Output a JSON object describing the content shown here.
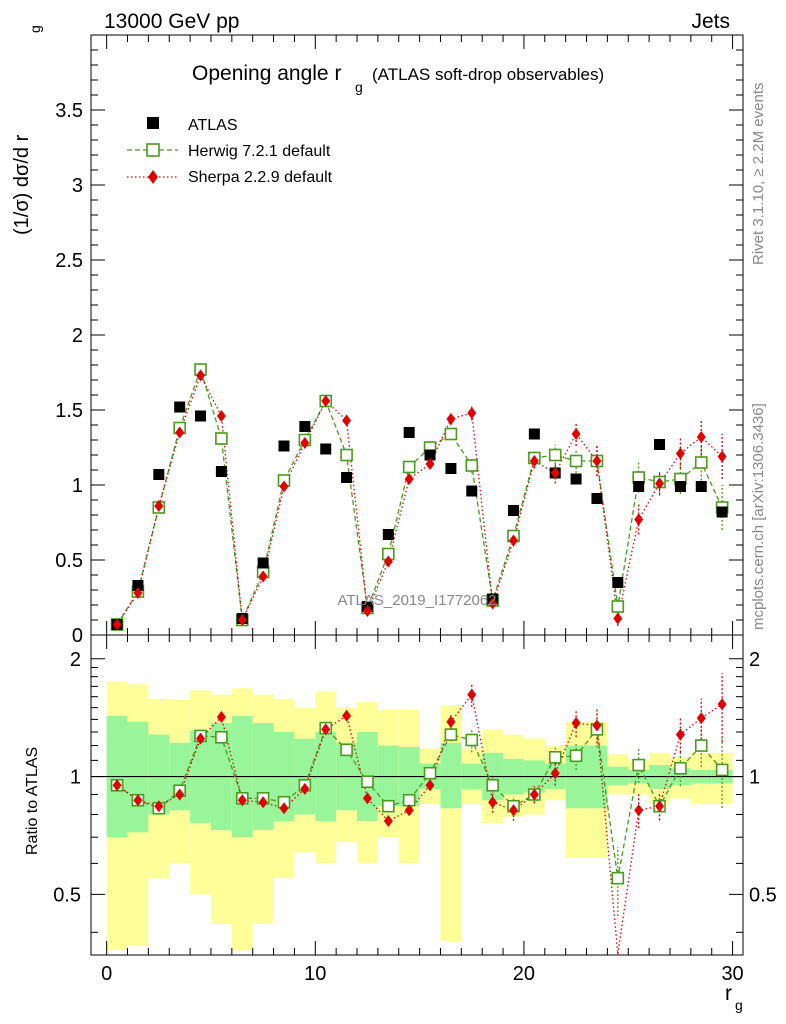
{
  "header": {
    "energy_label": "13000 GeV pp",
    "process_label": "Jets"
  },
  "chart_data": [
    {
      "type": "scatter",
      "title": "Opening angle r",
      "title_sub": "g",
      "title_suffix": "(ATLAS soft-drop observables)",
      "xlabel": "r",
      "xlabel_sub": "g",
      "ylabel": "(1/σ) dσ/d r",
      "ylabel_sub": "g",
      "xlim": [
        -0.75,
        30.5
      ],
      "ylim": [
        0,
        4.0
      ],
      "yticks": [
        0,
        0.5,
        1,
        1.5,
        2,
        2.5,
        3,
        3.5
      ],
      "ytick_labels": [
        "0",
        "0.5",
        "1",
        "1.5",
        "2",
        "2.5",
        "3",
        "3.5"
      ],
      "legend_position": "top-left",
      "watermark": "ATLAS_2019_I1772062",
      "side_label_top": "Rivet 3.1.10, ≥ 2.2M events",
      "side_label_bottom": "mcplots.cern.ch [arXiv:1306.3436]",
      "x": [
        0.5,
        1.5,
        2.5,
        3.5,
        4.5,
        5.5,
        6.5,
        7.5,
        8.5,
        9.5,
        10.5,
        11.5,
        12.5,
        13.5,
        14.5,
        15.5,
        16.5,
        17.5,
        18.5,
        19.5,
        20.5,
        21.5,
        22.5,
        23.5,
        24.5,
        25.5,
        26.5,
        27.5,
        28.5,
        29.5
      ],
      "series": [
        {
          "name": "ATLAS",
          "color": "#000000",
          "marker": "square-filled",
          "values": [
            0.07,
            0.33,
            1.07,
            1.52,
            1.46,
            1.09,
            0.11,
            0.48,
            1.26,
            1.39,
            1.24,
            1.05,
            0.19,
            0.67,
            1.35,
            1.2,
            1.11,
            0.96,
            0.24,
            0.83,
            1.34,
            1.08,
            1.04,
            0.91,
            0.35,
            0.99,
            1.27,
            0.99,
            0.99,
            0.82
          ]
        },
        {
          "name": "Herwig 7.2.1 default",
          "color": "#4a9a1b",
          "marker": "square-open",
          "line": "dashed",
          "values": [
            0.07,
            0.29,
            0.85,
            1.38,
            1.77,
            1.31,
            0.1,
            0.42,
            1.03,
            1.3,
            1.56,
            1.2,
            0.18,
            0.54,
            1.12,
            1.25,
            1.34,
            1.13,
            0.23,
            0.66,
            1.18,
            1.2,
            1.16,
            1.16,
            0.19,
            1.05,
            1.02,
            1.04,
            1.15,
            0.85
          ],
          "errors": [
            0,
            0,
            0,
            0,
            0,
            0,
            0,
            0,
            0,
            0,
            0,
            0,
            0,
            0,
            0.03,
            0.03,
            0.04,
            0.05,
            0.02,
            0.04,
            0.05,
            0.07,
            0.08,
            0.1,
            0.05,
            0.1,
            0.08,
            0.1,
            0.12,
            0.15
          ]
        },
        {
          "name": "Sherpa 2.2.9 default",
          "color": "#e00000",
          "marker": "diamond-filled",
          "line": "dotted",
          "values": [
            0.07,
            0.28,
            0.86,
            1.35,
            1.73,
            1.46,
            0.1,
            0.39,
            0.99,
            1.28,
            1.56,
            1.43,
            0.16,
            0.49,
            1.04,
            1.14,
            1.44,
            1.48,
            0.21,
            0.63,
            1.16,
            1.08,
            1.34,
            1.16,
            0.11,
            0.77,
            1.01,
            1.21,
            1.32,
            1.19
          ],
          "errors": [
            0,
            0,
            0,
            0,
            0,
            0,
            0,
            0,
            0,
            0,
            0,
            0,
            0,
            0,
            0.03,
            0.03,
            0.04,
            0.05,
            0.02,
            0.04,
            0.05,
            0.07,
            0.08,
            0.1,
            0.05,
            0.1,
            0.08,
            0.1,
            0.12,
            0.15
          ]
        }
      ]
    },
    {
      "type": "scatter",
      "ylabel": "Ratio to ATLAS",
      "xlabel": "r",
      "xlabel_sub": "g",
      "xlim": [
        -0.75,
        30.5
      ],
      "ylim": [
        0.35,
        2.3
      ],
      "xticks": [
        0,
        10,
        20,
        30
      ],
      "xtick_labels": [
        "0",
        "10",
        "20",
        "30"
      ],
      "yticks": [
        0.5,
        1,
        2
      ],
      "ytick_labels": [
        "0.5",
        "1",
        "2"
      ],
      "band_colors": {
        "inner": "#99f59a",
        "outer": "#ffff99"
      },
      "x_edges": [
        0,
        1,
        2,
        3,
        4,
        5,
        6,
        7,
        8,
        9,
        10,
        11,
        12,
        13,
        14,
        15,
        16,
        17,
        18,
        19,
        20,
        21,
        22,
        23,
        24,
        25,
        26,
        27,
        28,
        29,
        30
      ],
      "uncertainty_bands": {
        "inner_low": [
          0.7,
          0.72,
          0.8,
          0.82,
          0.76,
          0.73,
          0.7,
          0.73,
          0.77,
          0.8,
          0.77,
          0.82,
          0.77,
          0.84,
          0.84,
          0.93,
          0.83,
          0.93,
          0.87,
          0.9,
          0.91,
          0.93,
          0.83,
          0.83,
          0.95,
          0.96,
          0.93,
          0.95,
          0.96,
          0.96
        ],
        "inner_high": [
          1.43,
          1.38,
          1.28,
          1.22,
          1.31,
          1.37,
          1.43,
          1.37,
          1.3,
          1.25,
          1.3,
          1.22,
          1.3,
          1.2,
          1.19,
          1.08,
          1.22,
          1.08,
          1.15,
          1.11,
          1.1,
          1.08,
          1.2,
          1.2,
          1.06,
          1.04,
          1.07,
          1.05,
          1.04,
          1.04
        ],
        "outer_low": [
          0.36,
          0.37,
          0.55,
          0.6,
          0.5,
          0.42,
          0.36,
          0.42,
          0.55,
          0.64,
          0.6,
          0.68,
          0.6,
          0.7,
          0.6,
          0.85,
          0.38,
          0.85,
          0.76,
          0.79,
          0.8,
          0.87,
          0.62,
          0.62,
          0.9,
          0.9,
          0.85,
          0.88,
          0.85,
          0.85
        ],
        "outer_high": [
          1.75,
          1.72,
          1.58,
          1.57,
          1.66,
          1.62,
          1.68,
          1.62,
          1.58,
          1.5,
          1.65,
          1.5,
          1.55,
          1.48,
          1.48,
          1.18,
          1.52,
          1.18,
          1.32,
          1.28,
          1.25,
          1.2,
          1.38,
          1.38,
          1.14,
          1.1,
          1.15,
          1.12,
          1.15,
          1.15
        ]
      },
      "reference_line": 1,
      "series": [
        {
          "name": "Herwig 7.2.1 default",
          "color": "#4a9a1b",
          "values": [
            0.95,
            0.87,
            0.83,
            0.92,
            1.27,
            1.26,
            0.88,
            0.88,
            0.86,
            0.95,
            1.33,
            1.17,
            0.97,
            0.84,
            0.87,
            1.02,
            1.28,
            1.24,
            0.95,
            0.84,
            0.9,
            1.12,
            1.13,
            1.32,
            0.55,
            1.07,
            0.84,
            1.05,
            1.2,
            1.04
          ],
          "errors": [
            0,
            0,
            0,
            0,
            0,
            0,
            0,
            0,
            0,
            0,
            0,
            0,
            0,
            0,
            0.03,
            0.03,
            0.04,
            0.07,
            0.06,
            0.06,
            0.05,
            0.07,
            0.08,
            0.1,
            0.2,
            0.1,
            0.08,
            0.1,
            0.12,
            0.2
          ]
        },
        {
          "name": "Sherpa 2.2.9 default",
          "color": "#e00000",
          "values": [
            0.95,
            0.87,
            0.84,
            0.9,
            1.25,
            1.42,
            0.87,
            0.86,
            0.83,
            0.93,
            1.32,
            1.43,
            0.88,
            0.77,
            0.82,
            0.95,
            1.38,
            1.62,
            0.86,
            0.82,
            0.9,
            1.02,
            1.37,
            1.35,
            0.3,
            0.82,
            0.84,
            1.28,
            1.41,
            1.53
          ],
          "errors": [
            0,
            0,
            0,
            0,
            0,
            0,
            0,
            0,
            0,
            0,
            0,
            0,
            0,
            0,
            0.03,
            0.03,
            0.04,
            0.07,
            0.06,
            0.06,
            0.05,
            0.07,
            0.08,
            0.1,
            0.2,
            0.1,
            0.08,
            0.1,
            0.12,
            0.2
          ]
        }
      ]
    }
  ]
}
